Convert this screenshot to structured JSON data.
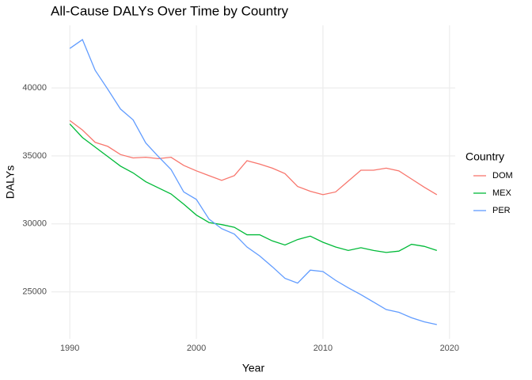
{
  "chart_data": {
    "type": "line",
    "title": "All-Cause DALYs Over Time by Country",
    "x_label": "Year",
    "y_label": "DALYs",
    "legend_title": "Country",
    "legend": "right",
    "grid": true,
    "x": [
      1990,
      1991,
      1992,
      1993,
      1994,
      1995,
      1996,
      1997,
      1998,
      1999,
      2000,
      2001,
      2002,
      2003,
      2004,
      2005,
      2006,
      2007,
      2008,
      2009,
      2010,
      2011,
      2012,
      2013,
      2014,
      2015,
      2016,
      2017,
      2018,
      2019
    ],
    "xlim": [
      1988.55,
      2020.45
    ],
    "xticks": [
      1990,
      2000,
      2010,
      2020
    ],
    "ylim": [
      21550,
      44600
    ],
    "yticks": [
      25000,
      30000,
      35000,
      40000
    ],
    "series": [
      {
        "name": "DOM",
        "color": "#F8766D",
        "values": [
          37600,
          36900,
          36000,
          35700,
          35100,
          34850,
          34900,
          34800,
          34900,
          34300,
          33900,
          33550,
          33200,
          33550,
          34650,
          34400,
          34100,
          33700,
          32750,
          32400,
          32150,
          32350,
          33150,
          33950,
          33950,
          34100,
          33900,
          33300,
          32700,
          32150
        ]
      },
      {
        "name": "MEX",
        "color": "#00BA38",
        "values": [
          37350,
          36350,
          35650,
          34950,
          34250,
          33750,
          33100,
          32650,
          32200,
          31450,
          30650,
          30100,
          29950,
          29750,
          29200,
          29200,
          28750,
          28450,
          28850,
          29100,
          28650,
          28300,
          28050,
          28250,
          28050,
          27900,
          28000,
          28500,
          28350,
          28050
        ]
      },
      {
        "name": "PER",
        "color": "#619CFF",
        "values": [
          42900,
          43550,
          41300,
          39900,
          38450,
          37650,
          35950,
          34950,
          34000,
          32350,
          31800,
          30350,
          29650,
          29250,
          28300,
          27650,
          26850,
          26000,
          25650,
          26600,
          26500,
          25850,
          25300,
          24800,
          24250,
          23700,
          23500,
          23100,
          22800,
          22600
        ]
      }
    ]
  }
}
